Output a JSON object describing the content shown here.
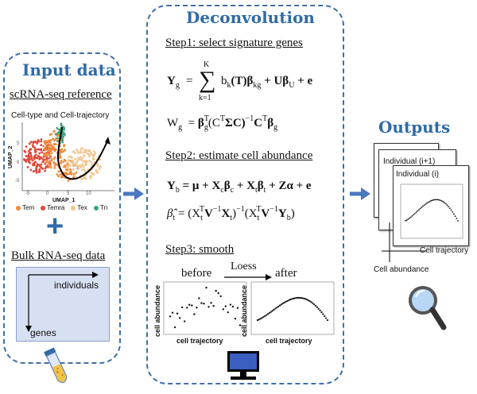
{
  "input": {
    "title": "Input data",
    "scrna_heading": "scRNA-seq reference",
    "celltype_caption": "Cell-type and Cell-trajectory",
    "umap_x": "UMAP_1",
    "umap_y": "UMAP_2",
    "tick_labels": [
      "-5",
      "0",
      "5",
      "10",
      "-5",
      "0",
      "5"
    ],
    "legend": [
      {
        "label": "Tem",
        "color": "#f08a3c"
      },
      {
        "label": "Temra",
        "color": "#e0483a"
      },
      {
        "label": "Tex",
        "color": "#f1c68e"
      },
      {
        "label": "Tn",
        "color": "#3aa57a"
      }
    ],
    "plus": "+",
    "bulk_heading": "Bulk RNA-seq data",
    "individuals_label": "individuals",
    "genes_label": "genes"
  },
  "deconv": {
    "title": "Deconvolution",
    "step1": "Step1: select signature genes",
    "step2": "Step2: estimate cell abundance",
    "step3": "Step3: smooth",
    "eq1": {
      "lhs": "Y",
      "lhs_sub": "g",
      "sum_top": "K",
      "sum_bottom": "k=1",
      "term": "b",
      "term_sub": "k",
      "mid": "(T)β",
      "mid_sub": "kg",
      "tail": "+ Uβ",
      "tail_sub": "U",
      "end": "+ e"
    },
    "eq2": {
      "lhs": "W",
      "lhs_sub": "g",
      "beta": "β",
      "beta_sub": "g",
      "beta_sup": "T",
      "paren": "(C",
      "c_sup": "T",
      "mid": "ΣC)",
      "inv": "−1",
      "c2": "C",
      "c2_sup": "T",
      "beta2": "β",
      "beta2_sub": "g"
    },
    "eq3": {
      "lhs": "Y",
      "lhs_sub": "b",
      "rhs": "= μ + X",
      "s1": "c",
      "b1": "β",
      "s2": "c",
      "p2": "+ X",
      "s3": "t",
      "b2": "β",
      "s4": "t",
      "tail": "+ Zα + e"
    },
    "eq4": {
      "lhs": "β̂",
      "lhs_sub": "t",
      "eq": "= (X",
      "x_sub": "t",
      "x_sup": "T",
      "v": "V",
      "v_sup": "−1",
      "x2": "X",
      "x2_sub": "t",
      "close": ")",
      "inv": "−1",
      "open2": "(X",
      "x3_sub": "t",
      "x3_sup": "T",
      "v2": "V",
      "v2_sup": "−1",
      "y": "Y",
      "y_sub": "b",
      "close2": ")"
    },
    "before": "before",
    "loess": "Loess",
    "after": "after",
    "y_axis": "cell abundance",
    "x_axis": "cell trajectory"
  },
  "outputs": {
    "title": "Outputs",
    "card_back": "Individual (i+1)",
    "card_front": "Individual (i)",
    "x_axis": "Cell trajectory",
    "y_axis": "Cell abundance"
  },
  "colors": {
    "accent": "#2f6ba8",
    "arrow": "#4a78c0",
    "bulk_fill": "#d7e0f3",
    "umap_green": "#3aa57a"
  },
  "icons": [
    "arrow-right-icon",
    "test-tube-icon",
    "computer-icon",
    "magnifier-icon"
  ]
}
